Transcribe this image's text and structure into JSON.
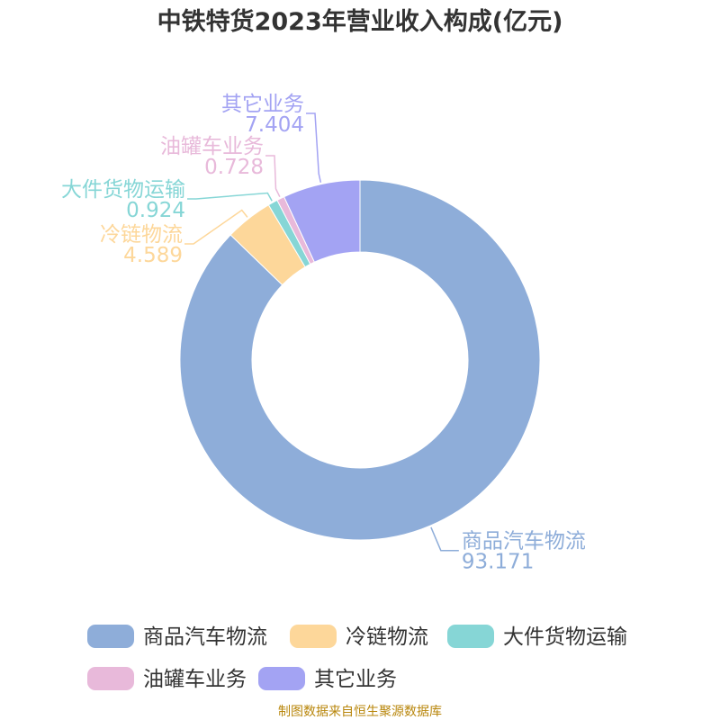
{
  "chart_data": {
    "type": "pie",
    "donut": true,
    "title": "中铁特货2023年营业收入构成(亿元)",
    "slices": [
      {
        "name": "商品汽车物流",
        "value": 93.171,
        "value_label": "93.171",
        "color": "#8eadd9"
      },
      {
        "name": "冷链物流",
        "value": 4.589,
        "value_label": "4.589",
        "color": "#fdd79a"
      },
      {
        "name": "大件货物运输",
        "value": 0.924,
        "value_label": "0.924",
        "color": "#86d6d6"
      },
      {
        "name": "油罐车业务",
        "value": 0.728,
        "value_label": "0.728",
        "color": "#e8b9da"
      },
      {
        "name": "其它业务",
        "value": 7.404,
        "value_label": "7.404",
        "color": "#a3a3f3"
      }
    ],
    "legend_position": "bottom"
  },
  "source": "制图数据来自恒生聚源数据库"
}
